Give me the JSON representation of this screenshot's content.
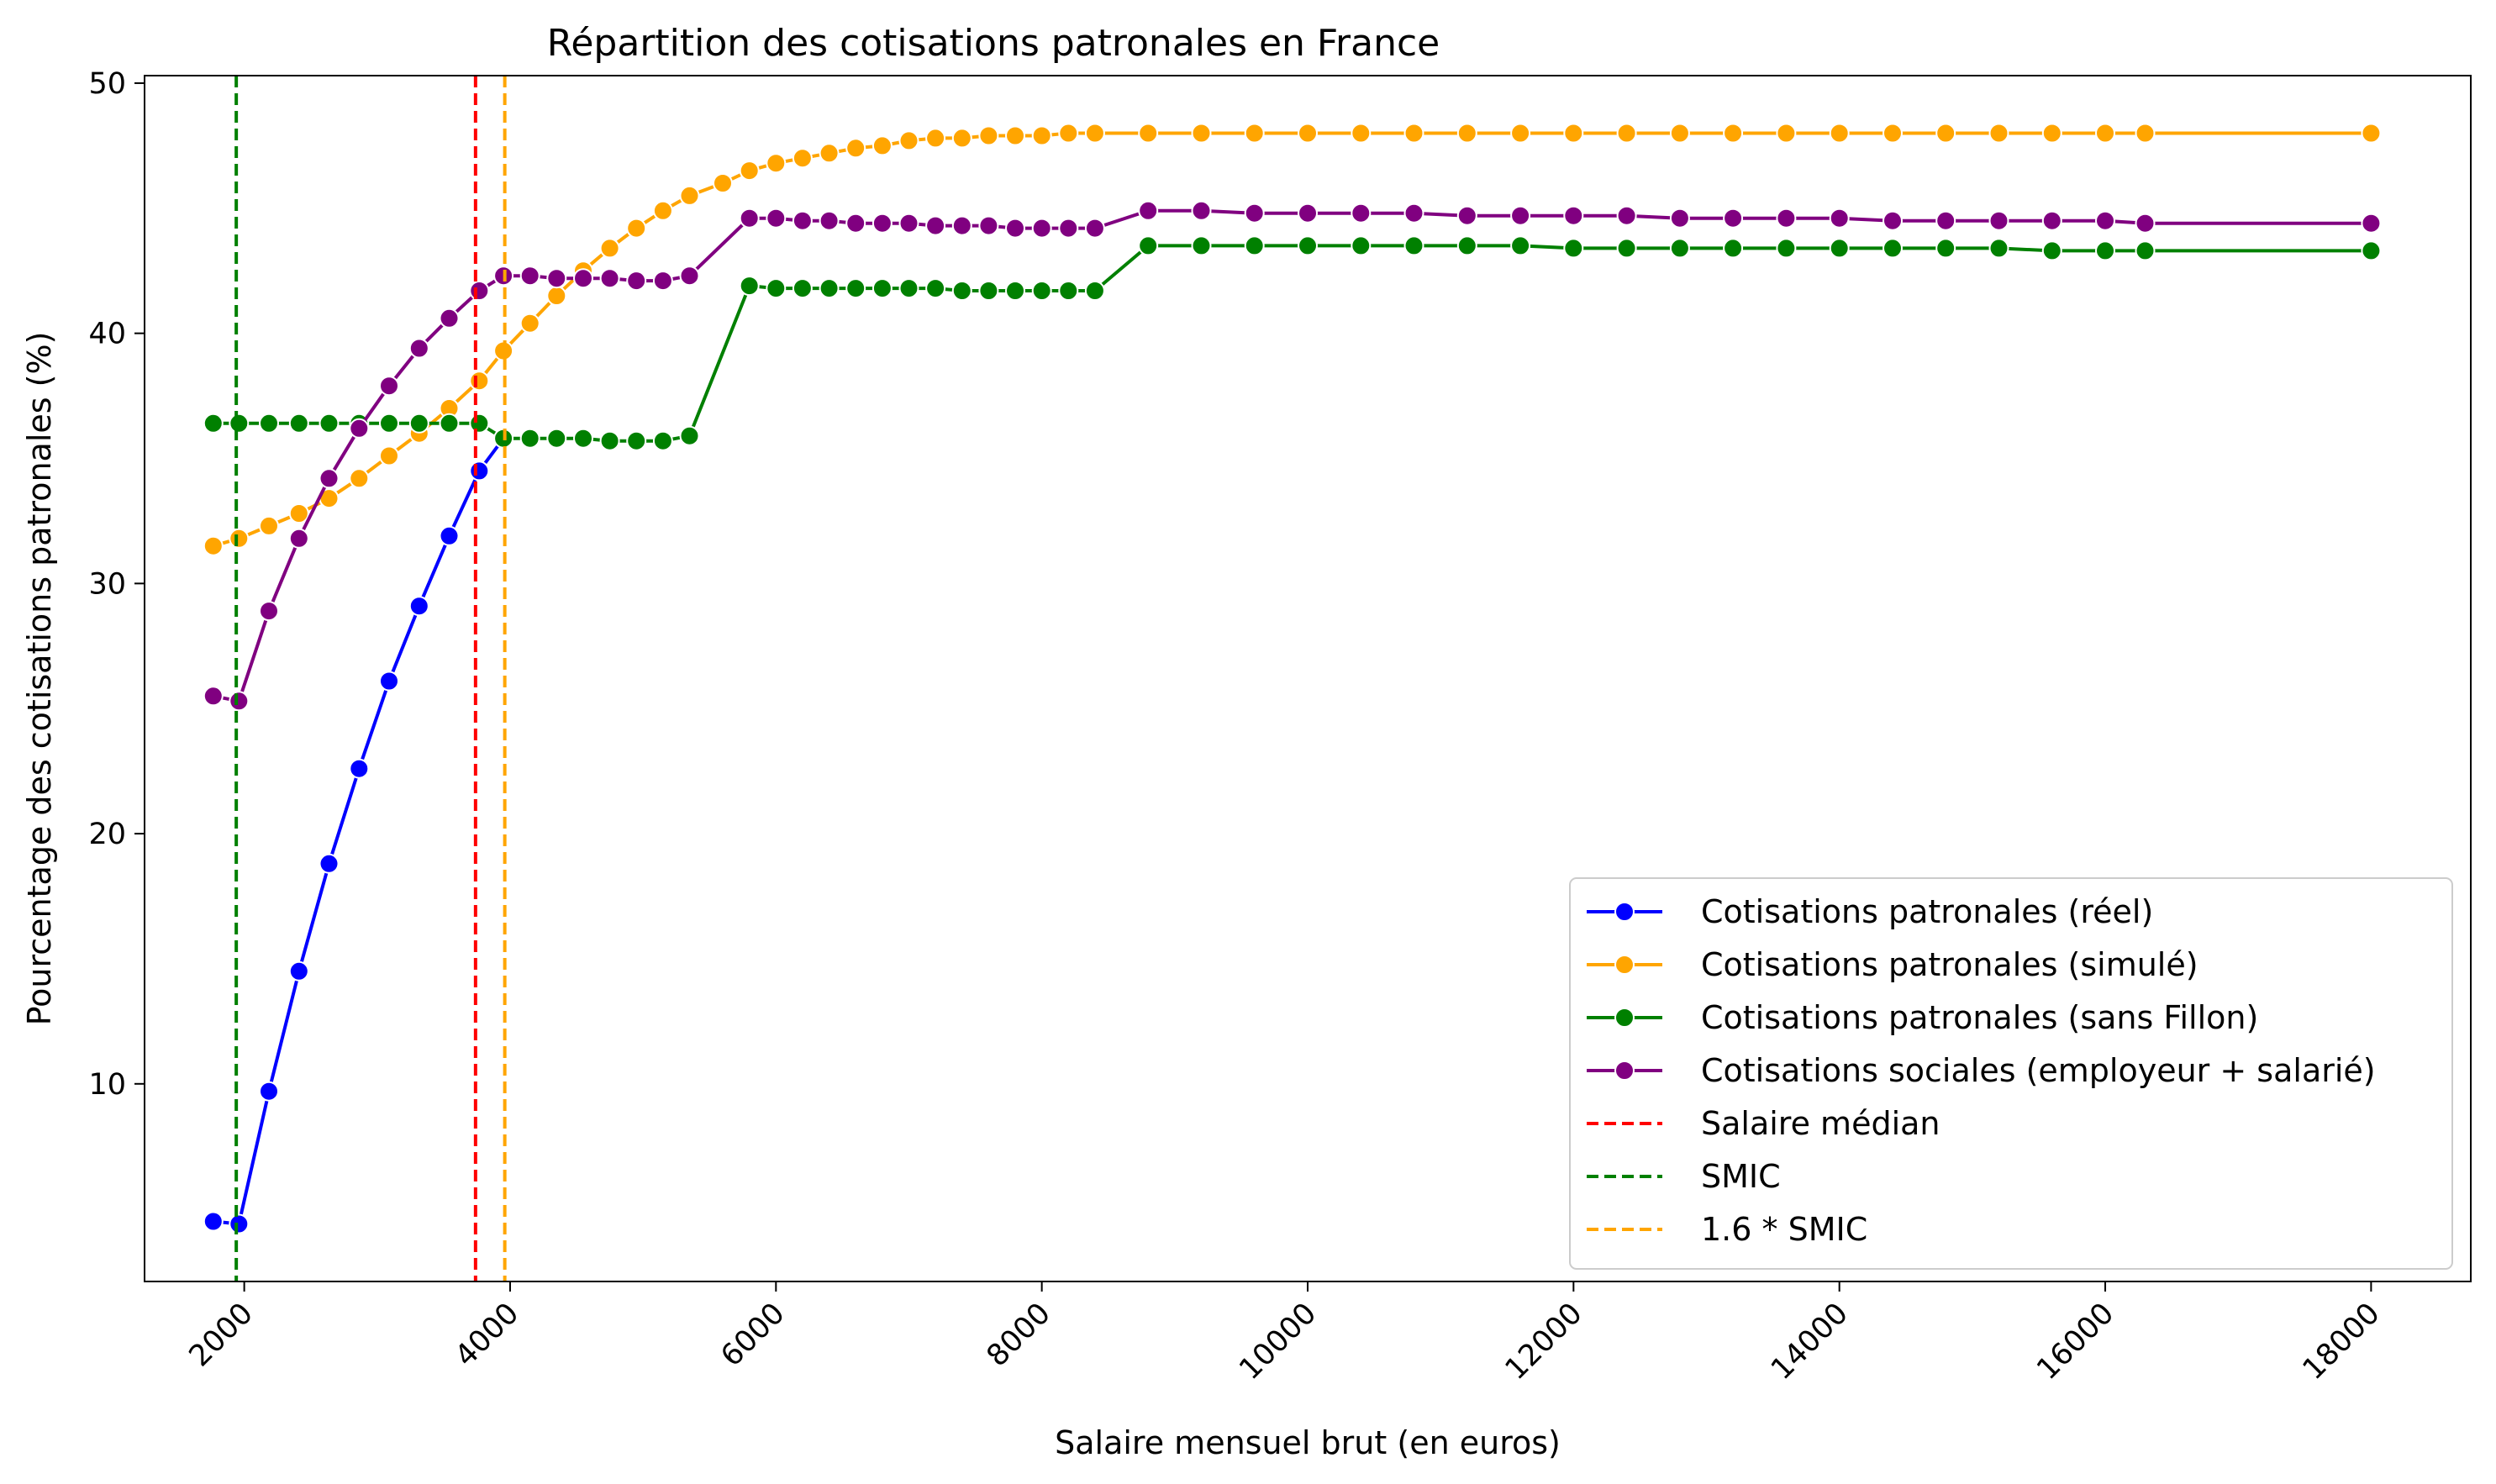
{
  "chart_data": {
    "type": "line",
    "title": "Répartition des cotisations patronales en France",
    "xlabel": "Salaire mensuel brut (en euros)",
    "ylabel": "Pourcentage des cotisations patronales (%)",
    "xlim": [
      1250,
      18750
    ],
    "ylim": [
      2.1,
      50.3
    ],
    "xticks": [
      2000,
      4000,
      6000,
      8000,
      10000,
      12000,
      14000,
      16000,
      18000
    ],
    "yticks": [
      10,
      20,
      30,
      40,
      50
    ],
    "grid": false,
    "legend_position": "lower right",
    "series": [
      {
        "name": "Cotisations patronales (réel)",
        "color": "#0000ff",
        "marker": "circle",
        "x": [
          1767,
          1960,
          2186,
          2412,
          2638,
          2864,
          3090,
          3316,
          3542,
          3768,
          3950
        ],
        "y": [
          4.5,
          4.4,
          9.7,
          14.5,
          18.8,
          22.6,
          26.1,
          29.1,
          31.9,
          34.5,
          35.8
        ]
      },
      {
        "name": "Cotisations patronales (simulé)",
        "color": "#ffa500",
        "marker": "circle",
        "x": [
          1767,
          1960,
          2186,
          2412,
          2638,
          2864,
          3090,
          3316,
          3542,
          3768,
          3950,
          4150,
          4350,
          4550,
          4750,
          4950,
          5150,
          5350,
          5600,
          5800,
          6000,
          6200,
          6400,
          6600,
          6800,
          7000,
          7200,
          7400,
          7600,
          7800,
          8000,
          8200,
          8400,
          8800,
          9200,
          9600,
          10000,
          10400,
          10800,
          11200,
          11600,
          12000,
          12400,
          12800,
          13200,
          13600,
          14000,
          14400,
          14800,
          15200,
          15600,
          16000,
          16300,
          18000
        ],
        "y": [
          31.5,
          31.8,
          32.3,
          32.8,
          33.4,
          34.2,
          35.1,
          36.0,
          37.0,
          38.1,
          39.3,
          40.4,
          41.5,
          42.5,
          43.4,
          44.2,
          44.9,
          45.5,
          46.0,
          46.5,
          46.8,
          47.0,
          47.2,
          47.4,
          47.5,
          47.7,
          47.8,
          47.8,
          47.9,
          47.9,
          47.9,
          48.0,
          48.0,
          48.0,
          48.0,
          48.0,
          48.0,
          48.0,
          48.0,
          48.0,
          48.0,
          48.0,
          48.0,
          48.0,
          48.0,
          48.0,
          48.0,
          48.0,
          48.0,
          48.0,
          48.0,
          48.0,
          48.0,
          48.0
        ]
      },
      {
        "name": "Cotisations patronales (sans Fillon)",
        "color": "#008000",
        "marker": "circle",
        "x": [
          1767,
          1960,
          2186,
          2412,
          2638,
          2864,
          3090,
          3316,
          3542,
          3768,
          3950,
          4150,
          4350,
          4550,
          4750,
          4950,
          5150,
          5350,
          5800,
          6000,
          6200,
          6400,
          6600,
          6800,
          7000,
          7200,
          7400,
          7600,
          7800,
          8000,
          8200,
          8400,
          8800,
          9200,
          9600,
          10000,
          10400,
          10800,
          11200,
          11600,
          12000,
          12400,
          12800,
          13200,
          13600,
          14000,
          14400,
          14800,
          15200,
          15600,
          16000,
          16300,
          18000
        ],
        "y": [
          36.4,
          36.4,
          36.4,
          36.4,
          36.4,
          36.4,
          36.4,
          36.4,
          36.4,
          36.4,
          35.8,
          35.8,
          35.8,
          35.8,
          35.7,
          35.7,
          35.7,
          35.9,
          41.9,
          41.8,
          41.8,
          41.8,
          41.8,
          41.8,
          41.8,
          41.8,
          41.7,
          41.7,
          41.7,
          41.7,
          41.7,
          41.7,
          43.5,
          43.5,
          43.5,
          43.5,
          43.5,
          43.5,
          43.5,
          43.5,
          43.4,
          43.4,
          43.4,
          43.4,
          43.4,
          43.4,
          43.4,
          43.4,
          43.4,
          43.3,
          43.3,
          43.3,
          43.3
        ]
      },
      {
        "name": "Cotisations sociales (employeur + salarié)",
        "color": "#800080",
        "marker": "circle",
        "x": [
          1767,
          1960,
          2186,
          2412,
          2638,
          2864,
          3090,
          3316,
          3542,
          3768,
          3950,
          4150,
          4350,
          4550,
          4750,
          4950,
          5150,
          5350,
          5800,
          6000,
          6200,
          6400,
          6600,
          6800,
          7000,
          7200,
          7400,
          7600,
          7800,
          8000,
          8200,
          8400,
          8800,
          9200,
          9600,
          10000,
          10400,
          10800,
          11200,
          11600,
          12000,
          12400,
          12800,
          13200,
          13600,
          14000,
          14400,
          14800,
          15200,
          15600,
          16000,
          16300,
          18000
        ],
        "y": [
          25.5,
          25.3,
          28.9,
          31.8,
          34.2,
          36.2,
          37.9,
          39.4,
          40.6,
          41.7,
          42.3,
          42.3,
          42.2,
          42.2,
          42.2,
          42.1,
          42.1,
          42.3,
          44.6,
          44.6,
          44.5,
          44.5,
          44.4,
          44.4,
          44.4,
          44.3,
          44.3,
          44.3,
          44.2,
          44.2,
          44.2,
          44.2,
          44.9,
          44.9,
          44.8,
          44.8,
          44.8,
          44.8,
          44.7,
          44.7,
          44.7,
          44.7,
          44.6,
          44.6,
          44.6,
          44.6,
          44.5,
          44.5,
          44.5,
          44.5,
          44.5,
          44.4,
          44.4
        ]
      }
    ],
    "vlines": [
      {
        "name": "Salaire médian",
        "x": 3740,
        "color": "#ff0000",
        "style": "dashed"
      },
      {
        "name": "SMIC",
        "x": 1940,
        "color": "#008000",
        "style": "dashed"
      },
      {
        "name": "1.6 * SMIC",
        "x": 3960,
        "color": "#ffa500",
        "style": "dashed"
      }
    ]
  }
}
